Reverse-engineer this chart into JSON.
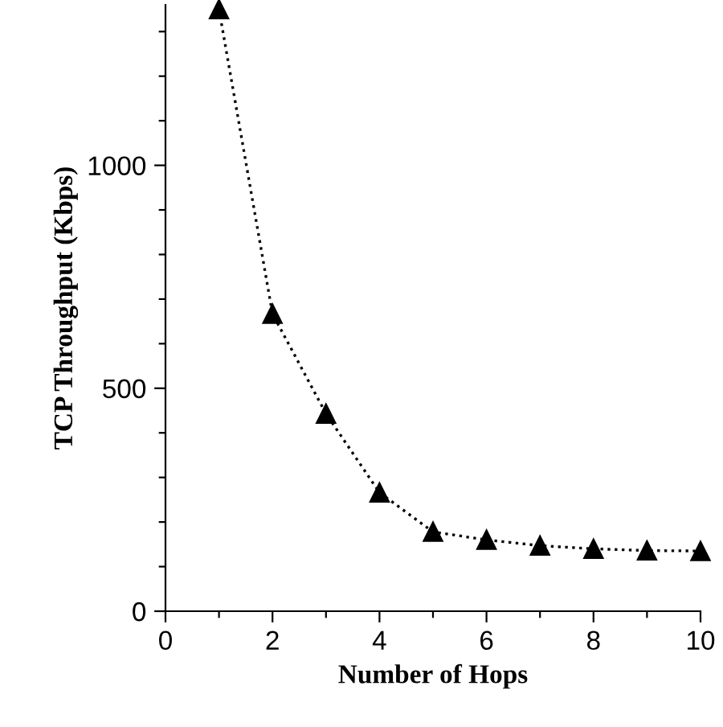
{
  "chart_data": {
    "type": "line",
    "xlabel": "Number of Hops",
    "ylabel": "TCP Throughput (Kbps)",
    "x": [
      1,
      2,
      3,
      4,
      5,
      6,
      7,
      8,
      9,
      10
    ],
    "series": [
      {
        "color": "#000000",
        "values": [
          1350,
          667,
          443,
          266,
          178,
          160,
          147,
          140,
          136,
          135
        ]
      }
    ],
    "marker": "triangle",
    "line_style": "dotted",
    "grid": false,
    "legend": false,
    "xlim": [
      0,
      10
    ],
    "ylim": [
      0,
      1360
    ],
    "xticks": [
      0,
      {
        "value": 1,
        "label": null
      },
      2,
      {
        "value": 3,
        "label": null
      },
      4,
      {
        "value": 5,
        "label": null
      },
      6,
      {
        "value": 7,
        "label": null
      },
      8,
      {
        "value": 9,
        "label": null
      },
      10
    ],
    "yticks": [
      0,
      {
        "value": 100,
        "label": null
      },
      {
        "value": 200,
        "label": null
      },
      {
        "value": 300,
        "label": null
      },
      {
        "value": 400,
        "label": null
      },
      500,
      {
        "value": 600,
        "label": null
      },
      {
        "value": 700,
        "label": null
      },
      {
        "value": 800,
        "label": null
      },
      {
        "value": 900,
        "label": null
      },
      1000,
      {
        "value": 1100,
        "label": null
      },
      {
        "value": 1200,
        "label": null
      },
      {
        "value": 1300,
        "label": null
      }
    ]
  }
}
